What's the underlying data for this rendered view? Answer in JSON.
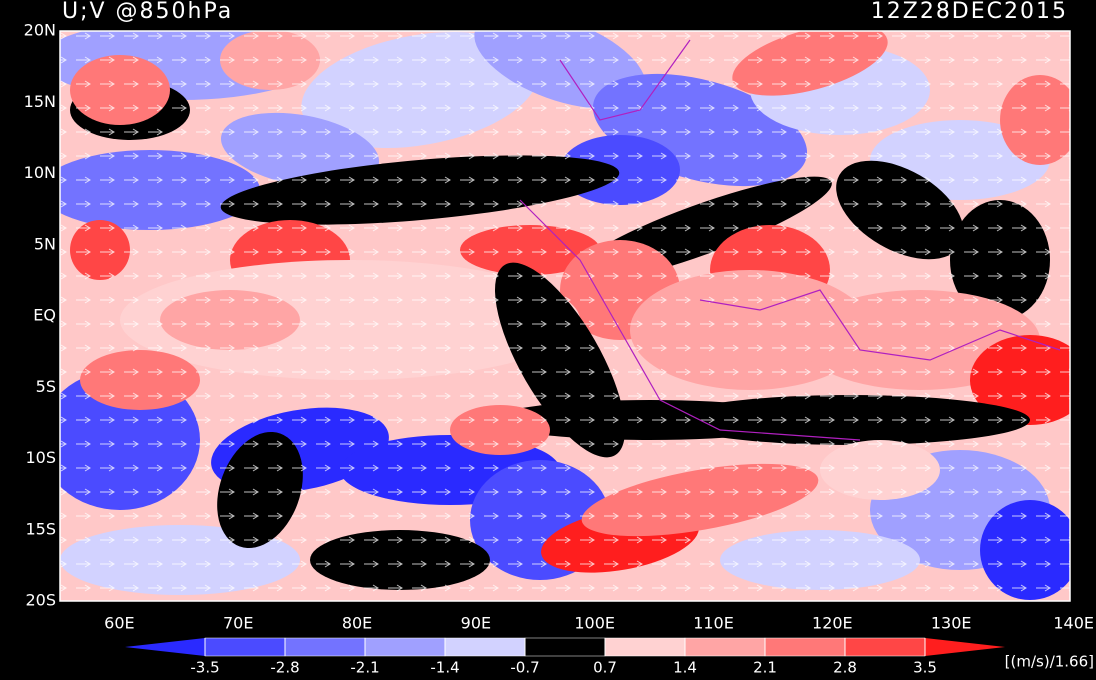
{
  "title": "U;V @850hPa",
  "timestamp": "12Z28DEC2015",
  "lat_labels": [
    "20N",
    "15N",
    "10N",
    "5N",
    "EQ",
    "5S",
    "10S",
    "15S",
    "20S"
  ],
  "lon_labels": [
    "60E",
    "70E",
    "80E",
    "90E",
    "100E",
    "110E",
    "120E",
    "130E",
    "140E"
  ],
  "colorbar": {
    "ticks": [
      -3.5,
      -2.8,
      -2.1,
      -1.4,
      -0.7,
      0.7,
      1.4,
      2.1,
      2.8,
      3.5
    ],
    "colors": [
      "#2a2aff",
      "#4b4bff",
      "#7373ff",
      "#a0a0ff",
      "#d2d2ff",
      "#000000",
      "#ffd2d2",
      "#ffa5a5",
      "#ff7878",
      "#ff4646",
      "#ff1e1e"
    ],
    "unit": "[(m/s)/1.66]"
  }
}
